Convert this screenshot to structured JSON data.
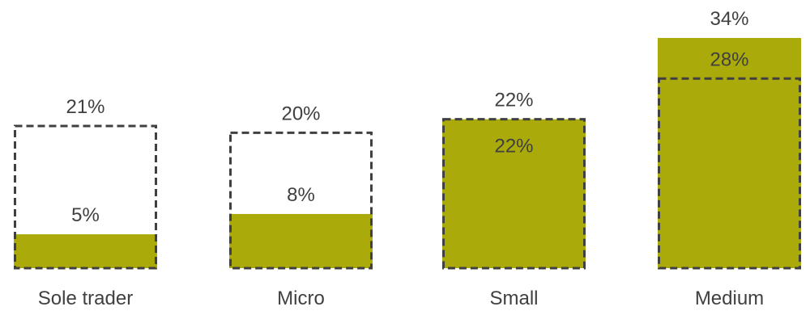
{
  "chart_data": {
    "type": "bar",
    "categories": [
      "Sole trader",
      "Micro",
      "Small",
      "Medium"
    ],
    "series": [
      {
        "style": "filled",
        "values": [
          5,
          8,
          22,
          34
        ]
      },
      {
        "style": "dashed-outline",
        "values": [
          21,
          20,
          22,
          28
        ]
      }
    ],
    "value_labels": {
      "filled": [
        "5%",
        "8%",
        "22%",
        "34%"
      ],
      "outline": [
        "21%",
        "20%",
        "22%",
        "28%"
      ]
    },
    "ylim": [
      0,
      34
    ],
    "colors": {
      "fill": "#aaaa0a",
      "outline": "#404040",
      "text": "#404040"
    }
  }
}
